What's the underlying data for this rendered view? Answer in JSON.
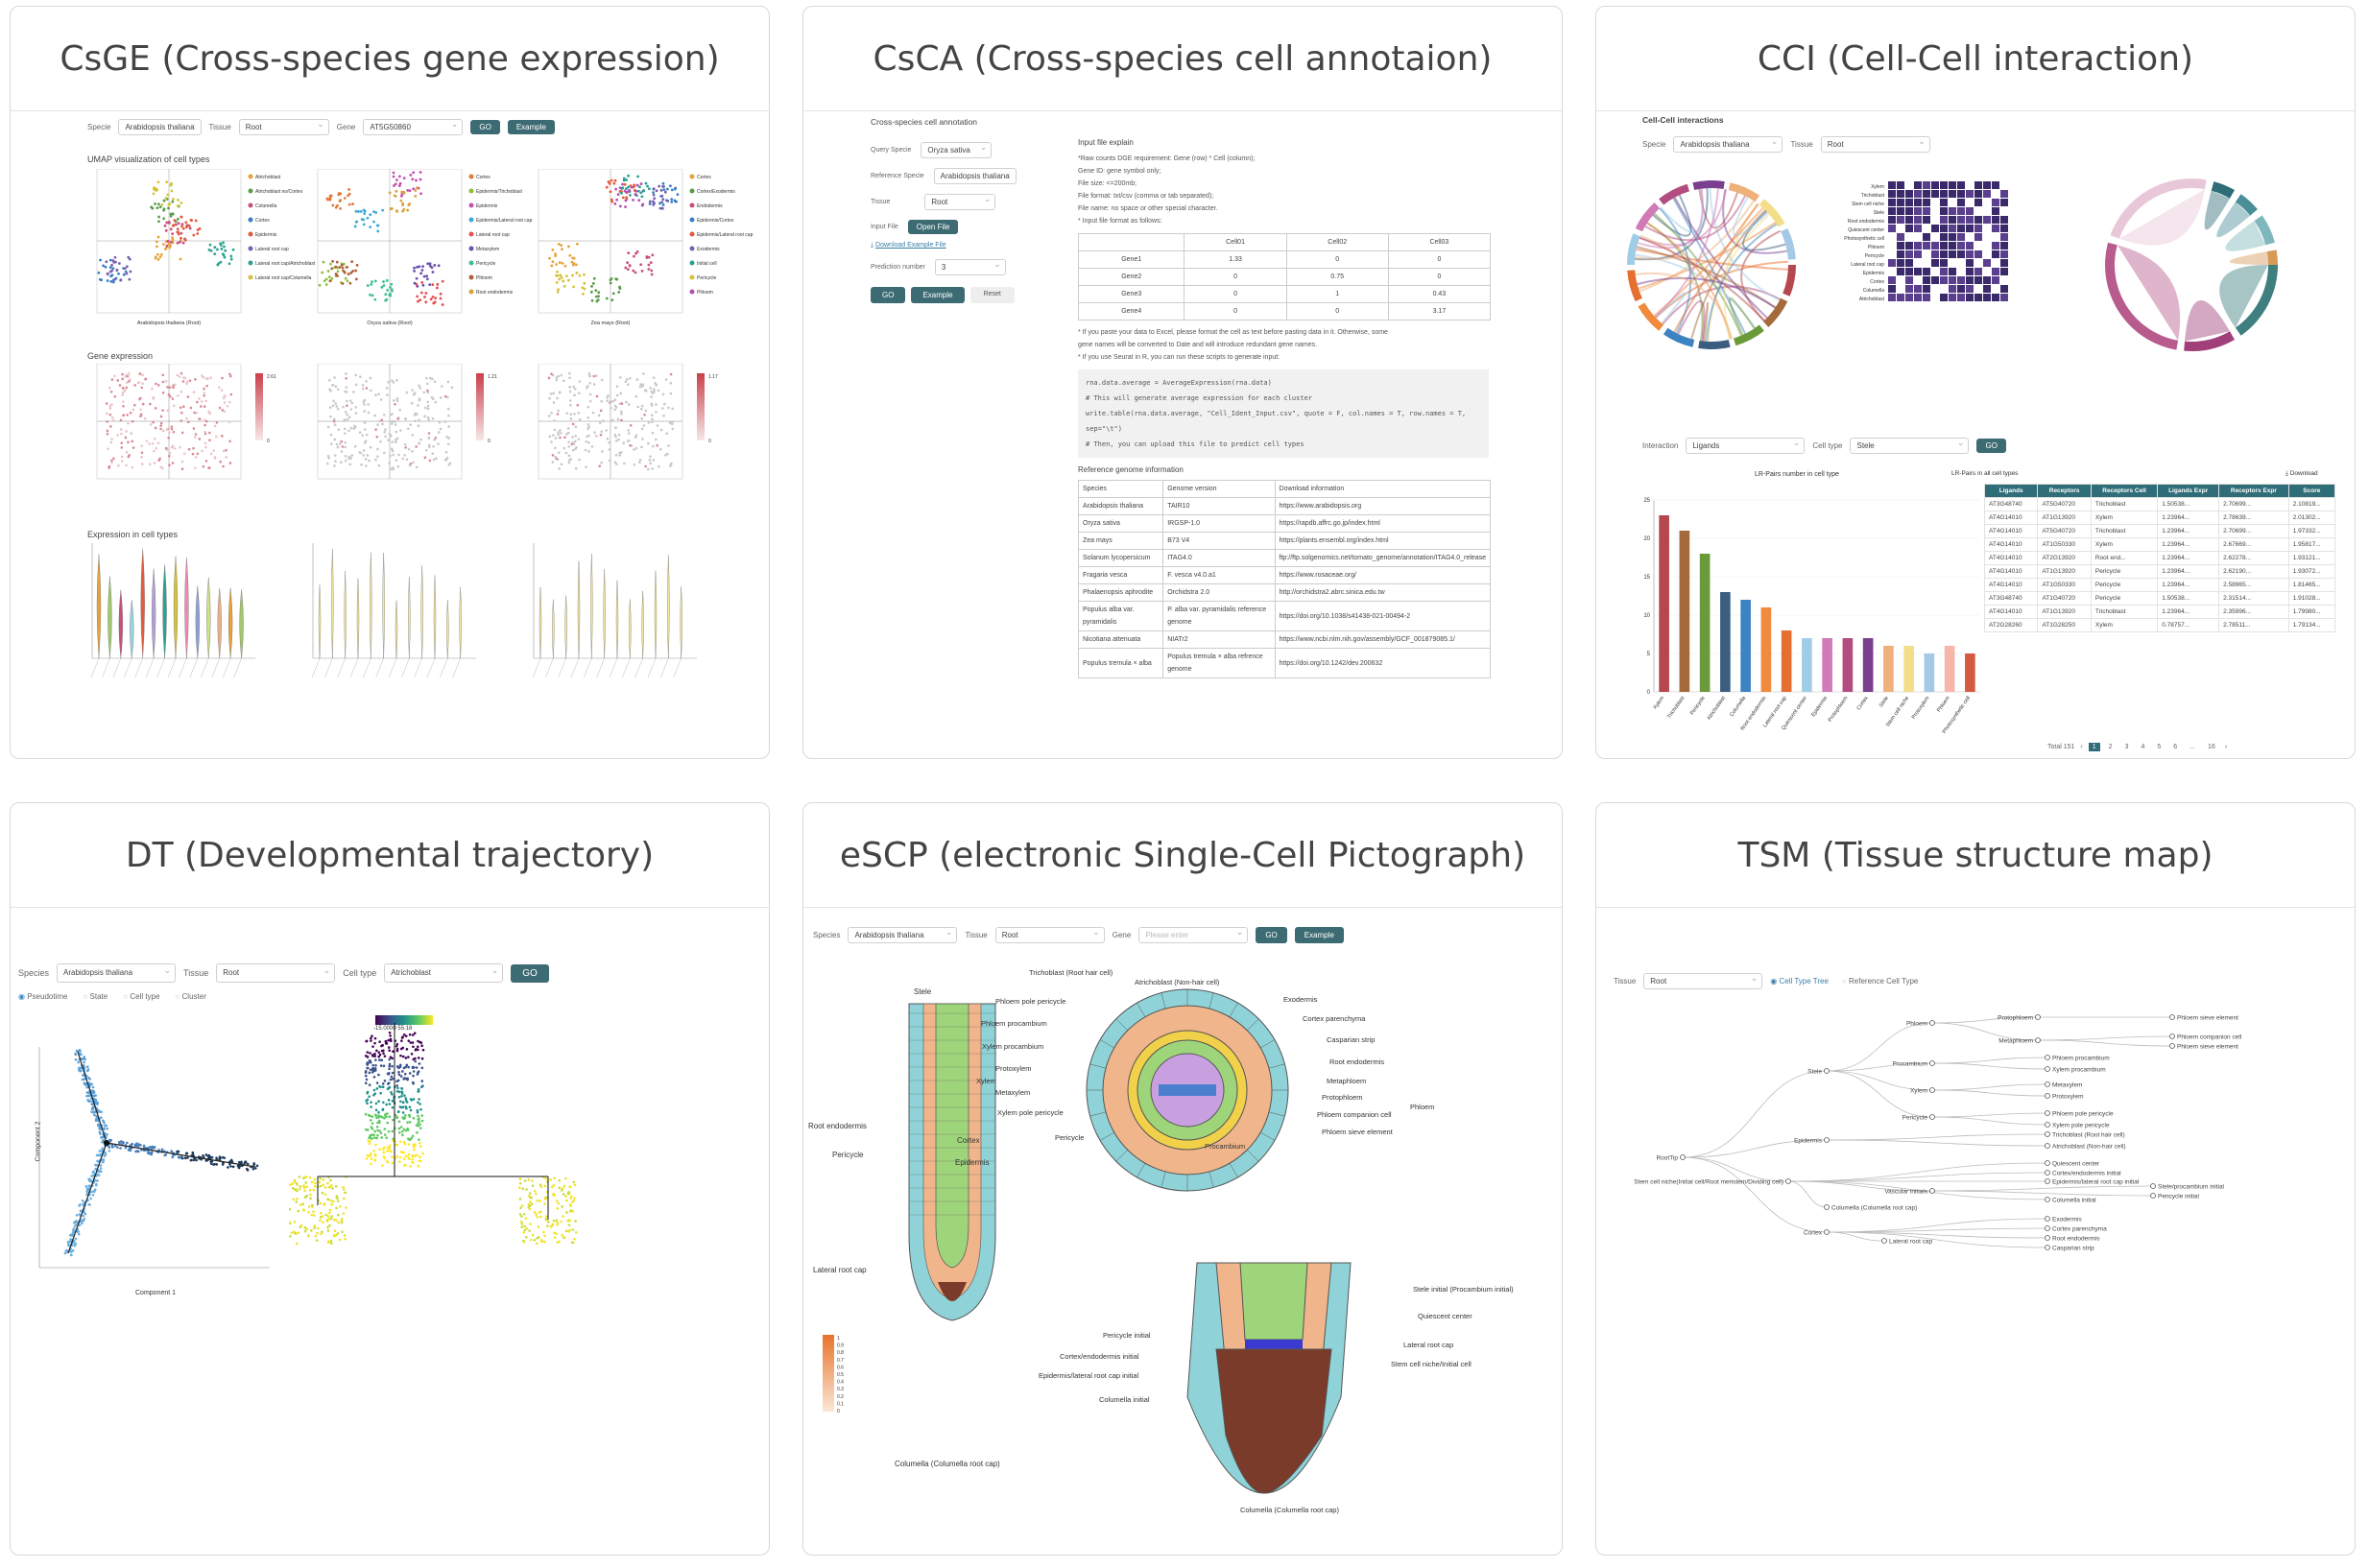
{
  "panels": {
    "csge": {
      "title": "CsGE (Cross-species gene expression)",
      "labels": {
        "species": "Specie",
        "tissue": "Tissue",
        "gene": "Gene"
      },
      "species_value": "Arabidopsis thaliana",
      "tissue_value": "Root",
      "gene_value": "AT5G50860",
      "go": "GO",
      "example": "Example",
      "umap_title": "UMAP visualization of cell types",
      "gene_expr_title": "Gene expression",
      "cell_types_title": "Expression in cell types",
      "umap_captions": [
        "Arabidopsis thaliana  (Root)",
        "Oryza sativa  (Root)",
        "Zea mays  (Root)"
      ],
      "legend1": [
        "Atrichoblast",
        "Atrichoblast no/Cortex",
        "Columella",
        "Cortex",
        "Epidermis",
        "Lateral root cap",
        "Lateral root cap/Atrichoblast",
        "Lateral root cap/Columella"
      ],
      "legend2": [
        "Cortex",
        "Epidermis/Trichoblast",
        "Epidermis",
        "Epidermis/Lateral root cap",
        "Lateral root cap",
        "Metaxylem",
        "Pericycle",
        "Phloem",
        "Root endodermis"
      ],
      "legend3": [
        "Cortex",
        "Cortex/Exodermis",
        "Endodermis",
        "Epidermis/Cortex",
        "Epidermis/Lateral root cap",
        "Exodermis",
        "Initial cell",
        "Pericycle",
        "Phloem"
      ],
      "scale_max": [
        "2.61",
        "1.21",
        "1.17"
      ]
    },
    "csca": {
      "title": "CsCA (Cross-species cell annotaion)",
      "section": "Cross-species cell annotation",
      "labels": {
        "query": "Query Specie",
        "reference": "Reference Specie",
        "tissue": "Tissue",
        "input": "Input File",
        "prediction": "Prediction number"
      },
      "query_value": "Oryza sativa",
      "reference_value": "Arabidopsis thaliana",
      "tissue_value": "Root",
      "prediction_value": "3",
      "open_file": "Open File",
      "download": "Download Example File",
      "go": "GO",
      "example": "Example",
      "reset": "Reset",
      "explain_title": "Input file explain",
      "explain_lines": [
        "*Raw counts DGE requirement: Gene (row) * Cell (column);",
        "Gene ID: gene symbol only;",
        "File size: <=200mb;",
        "File format: txt/csv (comma or tab separated);",
        "File name: no space or other special character.",
        "* Input file format as follows:"
      ],
      "matrix_header": [
        "",
        "Cell01",
        "Cell02",
        "Cell03"
      ],
      "matrix_rows": [
        [
          "Gene1",
          "1.33",
          "0",
          "0"
        ],
        [
          "Gene2",
          "0",
          "0.75",
          "0"
        ],
        [
          "Gene3",
          "0",
          "1",
          "0.43"
        ],
        [
          "Gene4",
          "0",
          "0",
          "3.17"
        ]
      ],
      "note_lines": [
        "* If you paste your data to Excel, please format the cell as text before pasting data in it. Otherwise, some",
        "gene names will be converted to Date and will introduce redundant gene names.",
        "* If you use Seurat in R, you can run these scripts to generate input:"
      ],
      "code_lines": [
        "rna.data.average = AverageExpression(rna.data)",
        "  # This will generate average expression for each cluster",
        "write.table(rna.data.average, \"Cell_Ident_Input.csv\", quote = F, col.names = T, row.names = T,",
        "  sep=\"\\t\")",
        "  # Then, you can upload this file to predict cell types"
      ],
      "ref_title": "Reference genome information",
      "ref_header": [
        "Species",
        "Genome version",
        "Download information"
      ],
      "ref_rows": [
        [
          "Arabidopsis thaliana",
          "TAIR10",
          "https://www.arabidopsis.org"
        ],
        [
          "Oryza sativa",
          "IRGSP-1.0",
          "https://rapdb.affrc.go.jp/index.html"
        ],
        [
          "Zea mays",
          "B73 V4",
          "https://plants.ensembl.org/index.html"
        ],
        [
          "Solanum lycopersicum",
          "ITAG4.0",
          "ftp://ftp.solgenomics.net/tomato_genome/annotation/ITAG4.0_release"
        ],
        [
          "Fragaria vesca",
          "F. vesca v4.0.a1",
          "https://www.rosaceae.org/"
        ],
        [
          "Phalaenopsis aphrodite",
          "Orchidstra 2.0",
          "http://orchidstra2.abrc.sinica.edu.tw"
        ],
        [
          "Populus alba var. pyramidalis",
          "P. alba var. pyramidalis reference genome",
          "https://doi.org/10.1038/s41438-021-00494-2"
        ],
        [
          "Nicotiana attenuata",
          "NIATr2",
          "https://www.ncbi.nlm.nih.gov/assembly/GCF_001879085.1/"
        ],
        [
          "Populus tremula × alba",
          "Populus tremula × alba refrence genome",
          "https://doi.org/10.1242/dev.200632"
        ]
      ]
    },
    "cci": {
      "title": "CCI (Cell-Cell interaction)",
      "section": "Cell-Cell interactions",
      "labels": {
        "specie": "Specie",
        "tissue": "Tissue",
        "interaction": "Interaction",
        "cell_type": "Cell type"
      },
      "specie_value": "Arabidopsis thaliana",
      "tissue_value": "Root",
      "interaction_value": "Ligands",
      "cell_type_value": "Stele",
      "go": "GO",
      "bar_title": "LR-Pairs number in cell type",
      "table_title": "LR-Pairs in all cell types",
      "download": "Download",
      "table_header": [
        "Ligands",
        "Receptors",
        "Receptors Cell",
        "Ligands Expr",
        "Receptors Expr",
        "Score"
      ],
      "table_rows": [
        [
          "AT3G48740",
          "AT5G40720",
          "Trichoblast",
          "1.50538...",
          "2.70699...",
          "2.10819..."
        ],
        [
          "AT4G14010",
          "AT1G13920",
          "Xylem",
          "1.23964...",
          "2.78639...",
          "2.01302..."
        ],
        [
          "AT4G14010",
          "AT5G40720",
          "Trichoblast",
          "1.23964...",
          "2.70699...",
          "1.97332..."
        ],
        [
          "AT4G14010",
          "AT1G50330",
          "Xylem",
          "1.23964...",
          "2.67669...",
          "1.95817..."
        ],
        [
          "AT4G14010",
          "AT2G13920",
          "Root end...",
          "1.23964...",
          "2.62278...",
          "1.93121..."
        ],
        [
          "AT4G14010",
          "AT1G13920",
          "Pericycle",
          "1.23964...",
          "2.62190...",
          "1.93072..."
        ],
        [
          "AT4G14010",
          "AT1G50330",
          "Pericycle",
          "1.23964...",
          "2.58965...",
          "1.81465..."
        ],
        [
          "AT3G48740",
          "AT1G40720",
          "Pericycle",
          "1.50538...",
          "2.31514...",
          "1.91028..."
        ],
        [
          "AT4G14010",
          "AT1G13920",
          "Trichoblast",
          "1.23964...",
          "2.35996...",
          "1.79980..."
        ],
        [
          "AT2G28260",
          "AT1G28250",
          "Xylem",
          "0.78757...",
          "2.78511...",
          "1.79134..."
        ]
      ],
      "pagination": {
        "total": "Total 151",
        "pages": [
          "1",
          "2",
          "3",
          "4",
          "5",
          "6",
          "...",
          "16"
        ]
      },
      "bar_categories": [
        "Xylem",
        "Trichoblast",
        "Pericycle",
        "Atrichoblast",
        "Columella",
        "Root endodermis",
        "Lateral root cap",
        "Quiescent center",
        "Epidermis",
        "Protophloem",
        "Cortex",
        "Stele",
        "Stem cell niche",
        "Protoxylem",
        "Phloem",
        "Photosynthetic cell"
      ],
      "bar_values": [
        23,
        21,
        18,
        13,
        12,
        11,
        8,
        7,
        7,
        7,
        7,
        6,
        6,
        5,
        6,
        5
      ],
      "bar_colors": [
        "#b5474e",
        "#a56a3b",
        "#6b9a3b",
        "#3b5e80",
        "#3d83c2",
        "#f08a3d",
        "#e56e31",
        "#9fcde8",
        "#d17ab8",
        "#b34d7f",
        "#7a3f8f",
        "#f0b07a",
        "#f4dd88",
        "#a3c9e6",
        "#f6b6a9",
        "#d65a41"
      ],
      "yticks": [
        "0",
        "5",
        "10",
        "15",
        "20",
        "25"
      ],
      "heatmap_rows": [
        "Xylem",
        "Trichoblast",
        "Stem cell niche",
        "Stele",
        "Root endodermis",
        "Quiescent center",
        "Photosynthetic cell",
        "Phloem",
        "Pericycle",
        "Lateral root cap",
        "Epidermis",
        "Cortex",
        "Columella",
        "Atrichoblast"
      ]
    },
    "dt": {
      "title": "DT (Developmental trajectory)",
      "labels": {
        "species": "Species",
        "tissue": "Tissue",
        "cell_type": "Cell type"
      },
      "species_value": "Arabidopsis thaliana",
      "tissue_value": "Root",
      "cell_type_value": "Atrichoblast",
      "go": "GO",
      "radios": [
        "Pseudotime",
        "State",
        "Cell type",
        "Cluster"
      ],
      "axis_x": "Component 1",
      "axis_y": "Component 2",
      "colorbar": "-15.0000 55.18"
    },
    "escp": {
      "title": "eSCP (electronic Single-Cell Pictograph)",
      "labels": {
        "species": "Species",
        "tissue": "Tissue",
        "gene": "Gene"
      },
      "species_value": "Arabidopsis thaliana",
      "tissue_value": "Root",
      "gene_placeholder": "Please enter",
      "go": "GO",
      "example": "Example",
      "left_labels": [
        "Stele",
        "Root endodermis",
        "Pericycle",
        "Cortex",
        "Epidermis",
        "Lateral root cap",
        "Columella (Columella root cap)"
      ],
      "cross_labels": [
        "Trichoblast (Root hair cell)",
        "Atrichoblast (Non-hair cell)",
        "Exodermis",
        "Cortex parenchyma",
        "Casparian strip",
        "Root endodermis",
        "Metaphloem",
        "Protophloem",
        "Phloem",
        "Phloem companion cell",
        "Phloem sieve element",
        "Procambium",
        "Pericycle",
        "Xylem pole pericycle",
        "Xylem",
        "Protoxylem",
        "Metaxylem",
        "Xylem procambium",
        "Phloem procambium",
        "Phloem pole pericycle"
      ],
      "tip_labels": [
        "Stele initial (Procambium initial)",
        "Quiescent center",
        "Lateral root cap",
        "Stem cell niche/Initial cell",
        "Pericycle initial",
        "Cortex/endodermis initial",
        "Epidermis/lateral root cap initial",
        "Columella initial",
        "Columella (Columella root cap)"
      ],
      "scale": [
        "1",
        "0.9",
        "0.8",
        "0.7",
        "0.6",
        "0.5",
        "0.4",
        "0.3",
        "0.2",
        "0.1",
        "0"
      ]
    },
    "tsm": {
      "title": "TSM (Tissue structure map)",
      "labels": {
        "tissue": "Tissue"
      },
      "tissue_value": "Root",
      "radios": [
        "Cell Type Tree",
        "Reference Cell Type"
      ],
      "nodes": {
        "root": "RootTip",
        "stele": "Stele",
        "epidermis": "Epidermis",
        "stem": "Stem cell niche(Initial cell/Root meristem/Dividing cell)",
        "cortex": "Cortex",
        "phloem": "Phloem",
        "procambium": "Procambium",
        "xylem": "Xylem",
        "pericycle": "Pericycle",
        "protophloem": "Protophloem",
        "metaphloem": "Metaphloem",
        "vascular": "Vascular initials",
        "columella": "Columella (Columella root cap)",
        "lrc": "Lateral root cap"
      },
      "leaves": [
        "Phloem sieve element",
        "Phloem companion cell",
        "Phloem sieve element",
        "Phloem procambium",
        "Xylem procambium",
        "Metaxylem",
        "Protoxylem",
        "Phloem pole pericycle",
        "Xylem pole pericycle",
        "Trichoblast (Root hair cell)",
        "Atrichoblast (Non-hair cell)",
        "Quiescent center",
        "Cortex/endodermis initial",
        "Epidermis/lateral root cap initial",
        "Stele/procambium initial",
        "Pericycle initial",
        "Columella initial",
        "Exodermis",
        "Cortex parenchyma",
        "Root endodermis",
        "Casparian strip"
      ]
    }
  }
}
